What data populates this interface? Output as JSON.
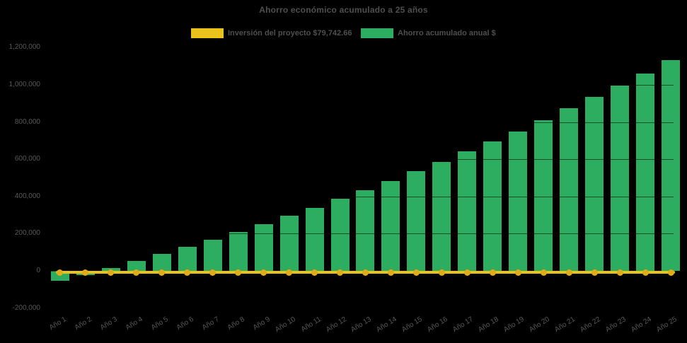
{
  "title": "Ahorro económico acumulado a 25 años",
  "legend": [
    {
      "label": "Inversión del proyecto $79,742.66",
      "color": "#E9C31C",
      "series_type": "line"
    },
    {
      "label": "Ahorro acumulado anual $",
      "color": "#2CAD5F",
      "series_type": "bar"
    }
  ],
  "colors": {
    "background": "#000000",
    "bar_green": "#2CAD5F",
    "line_yellow": "#E9C31C",
    "marker_yellow": "#E2AC18",
    "title_text": "#4f4f4f",
    "axis_text": "#595959"
  },
  "chart_data": {
    "type": "bar",
    "title": "Ahorro económico acumulado a 25 años",
    "categories": [
      "Año 1",
      "Año 2",
      "Año 3",
      "Año 4",
      "Año 5",
      "Año 6",
      "Año 7",
      "Año 8",
      "Año 9",
      "Año 10",
      "Año 11",
      "Año 12",
      "Año 13",
      "Año 14",
      "Año 15",
      "Año 16",
      "Año 17",
      "Año 18",
      "Año 19",
      "Año 20",
      "Año 21",
      "Año 22",
      "Año 23",
      "Año 24",
      "Año 25"
    ],
    "series": [
      {
        "name": "Ahorro acumulado anual $",
        "type": "bar",
        "color": "#2CAD5F",
        "values": [
          -53000,
          -24000,
          17000,
          52000,
          90000,
          128000,
          167000,
          209000,
          252000,
          297000,
          338000,
          388000,
          435000,
          484000,
          535000,
          586000,
          641000,
          695000,
          749000,
          811000,
          873000,
          936000,
          996000,
          1062000,
          1132000
        ]
      },
      {
        "name": "Inversión del proyecto $79,742.66",
        "type": "line",
        "color": "#E9C31C",
        "marker_color": "#E2AC18",
        "constant_value_plotted": -8000
      }
    ],
    "xlabel": "",
    "ylabel": "",
    "ylim": [
      -200000,
      1200000
    ],
    "ytick_step": 200000,
    "ytick_labels": [
      "1,200,000",
      "1,000,000",
      "800,000",
      "600,000",
      "400,000",
      "200,000",
      "0",
      "-200,000"
    ],
    "grid": false,
    "legend_position": "top"
  }
}
